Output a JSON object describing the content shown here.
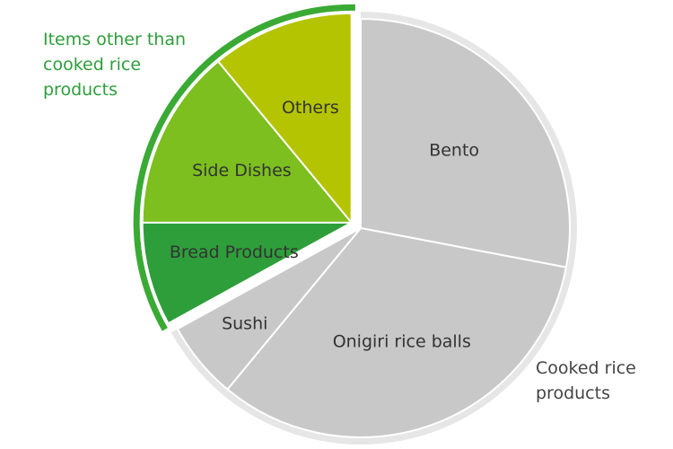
{
  "chart_data": {
    "type": "pie",
    "groups": [
      {
        "name": "Cooked rice products",
        "color": "#e6e6e6",
        "label_color": "#444444",
        "categories": [
          "Bento",
          "Onigiri rice balls",
          "Sushi"
        ],
        "values": [
          28,
          33,
          6
        ],
        "colors": [
          "#c8c8c8",
          "#c8c8c8",
          "#c8c8c8"
        ]
      },
      {
        "name": "Items other than cooked rice products",
        "color": "#3aaa35",
        "label_color": "#2e9e3a",
        "categories": [
          "Bread Products",
          "Side Dishes",
          "Others"
        ],
        "values": [
          8,
          14,
          11
        ],
        "colors": [
          "#2e9e3a",
          "#7cbf1f",
          "#b4c400"
        ]
      }
    ]
  }
}
